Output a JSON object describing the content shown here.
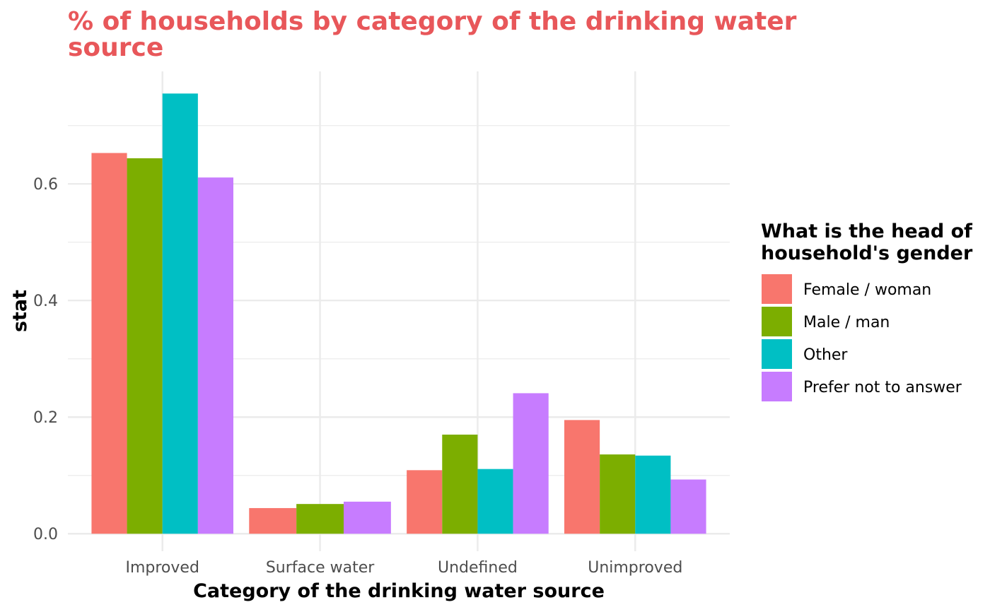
{
  "chart_data": {
    "type": "bar",
    "title_lines": [
      "% of households by category of the drinking water",
      "source"
    ],
    "title_color": "#e8575a",
    "xlabel": "Category of the drinking water source",
    "ylabel": "stat",
    "categories": [
      "Improved",
      "Surface water",
      "Undefined",
      "Unimproved"
    ],
    "ylim": [
      -0.03,
      0.793
    ],
    "yticks": [
      0.0,
      0.2,
      0.4,
      0.6
    ],
    "ytick_labels": [
      "0.0",
      "0.2",
      "0.4",
      "0.6"
    ],
    "grid": true,
    "legend_position": "right",
    "legend_title_lines": [
      "What is the head of",
      "household's gender"
    ],
    "series": [
      {
        "name": "Female / woman",
        "color": "#F8766D",
        "values": [
          0.653,
          0.044,
          0.109,
          0.195
        ]
      },
      {
        "name": "Male / man",
        "color": "#7CAE00",
        "values": [
          0.644,
          0.051,
          0.17,
          0.136
        ]
      },
      {
        "name": "Other",
        "color": "#00BFC4",
        "values": [
          0.755,
          null,
          0.111,
          0.134
        ]
      },
      {
        "name": "Prefer not to answer",
        "color": "#C77CFF",
        "values": [
          0.611,
          0.055,
          0.241,
          0.093
        ]
      }
    ]
  }
}
